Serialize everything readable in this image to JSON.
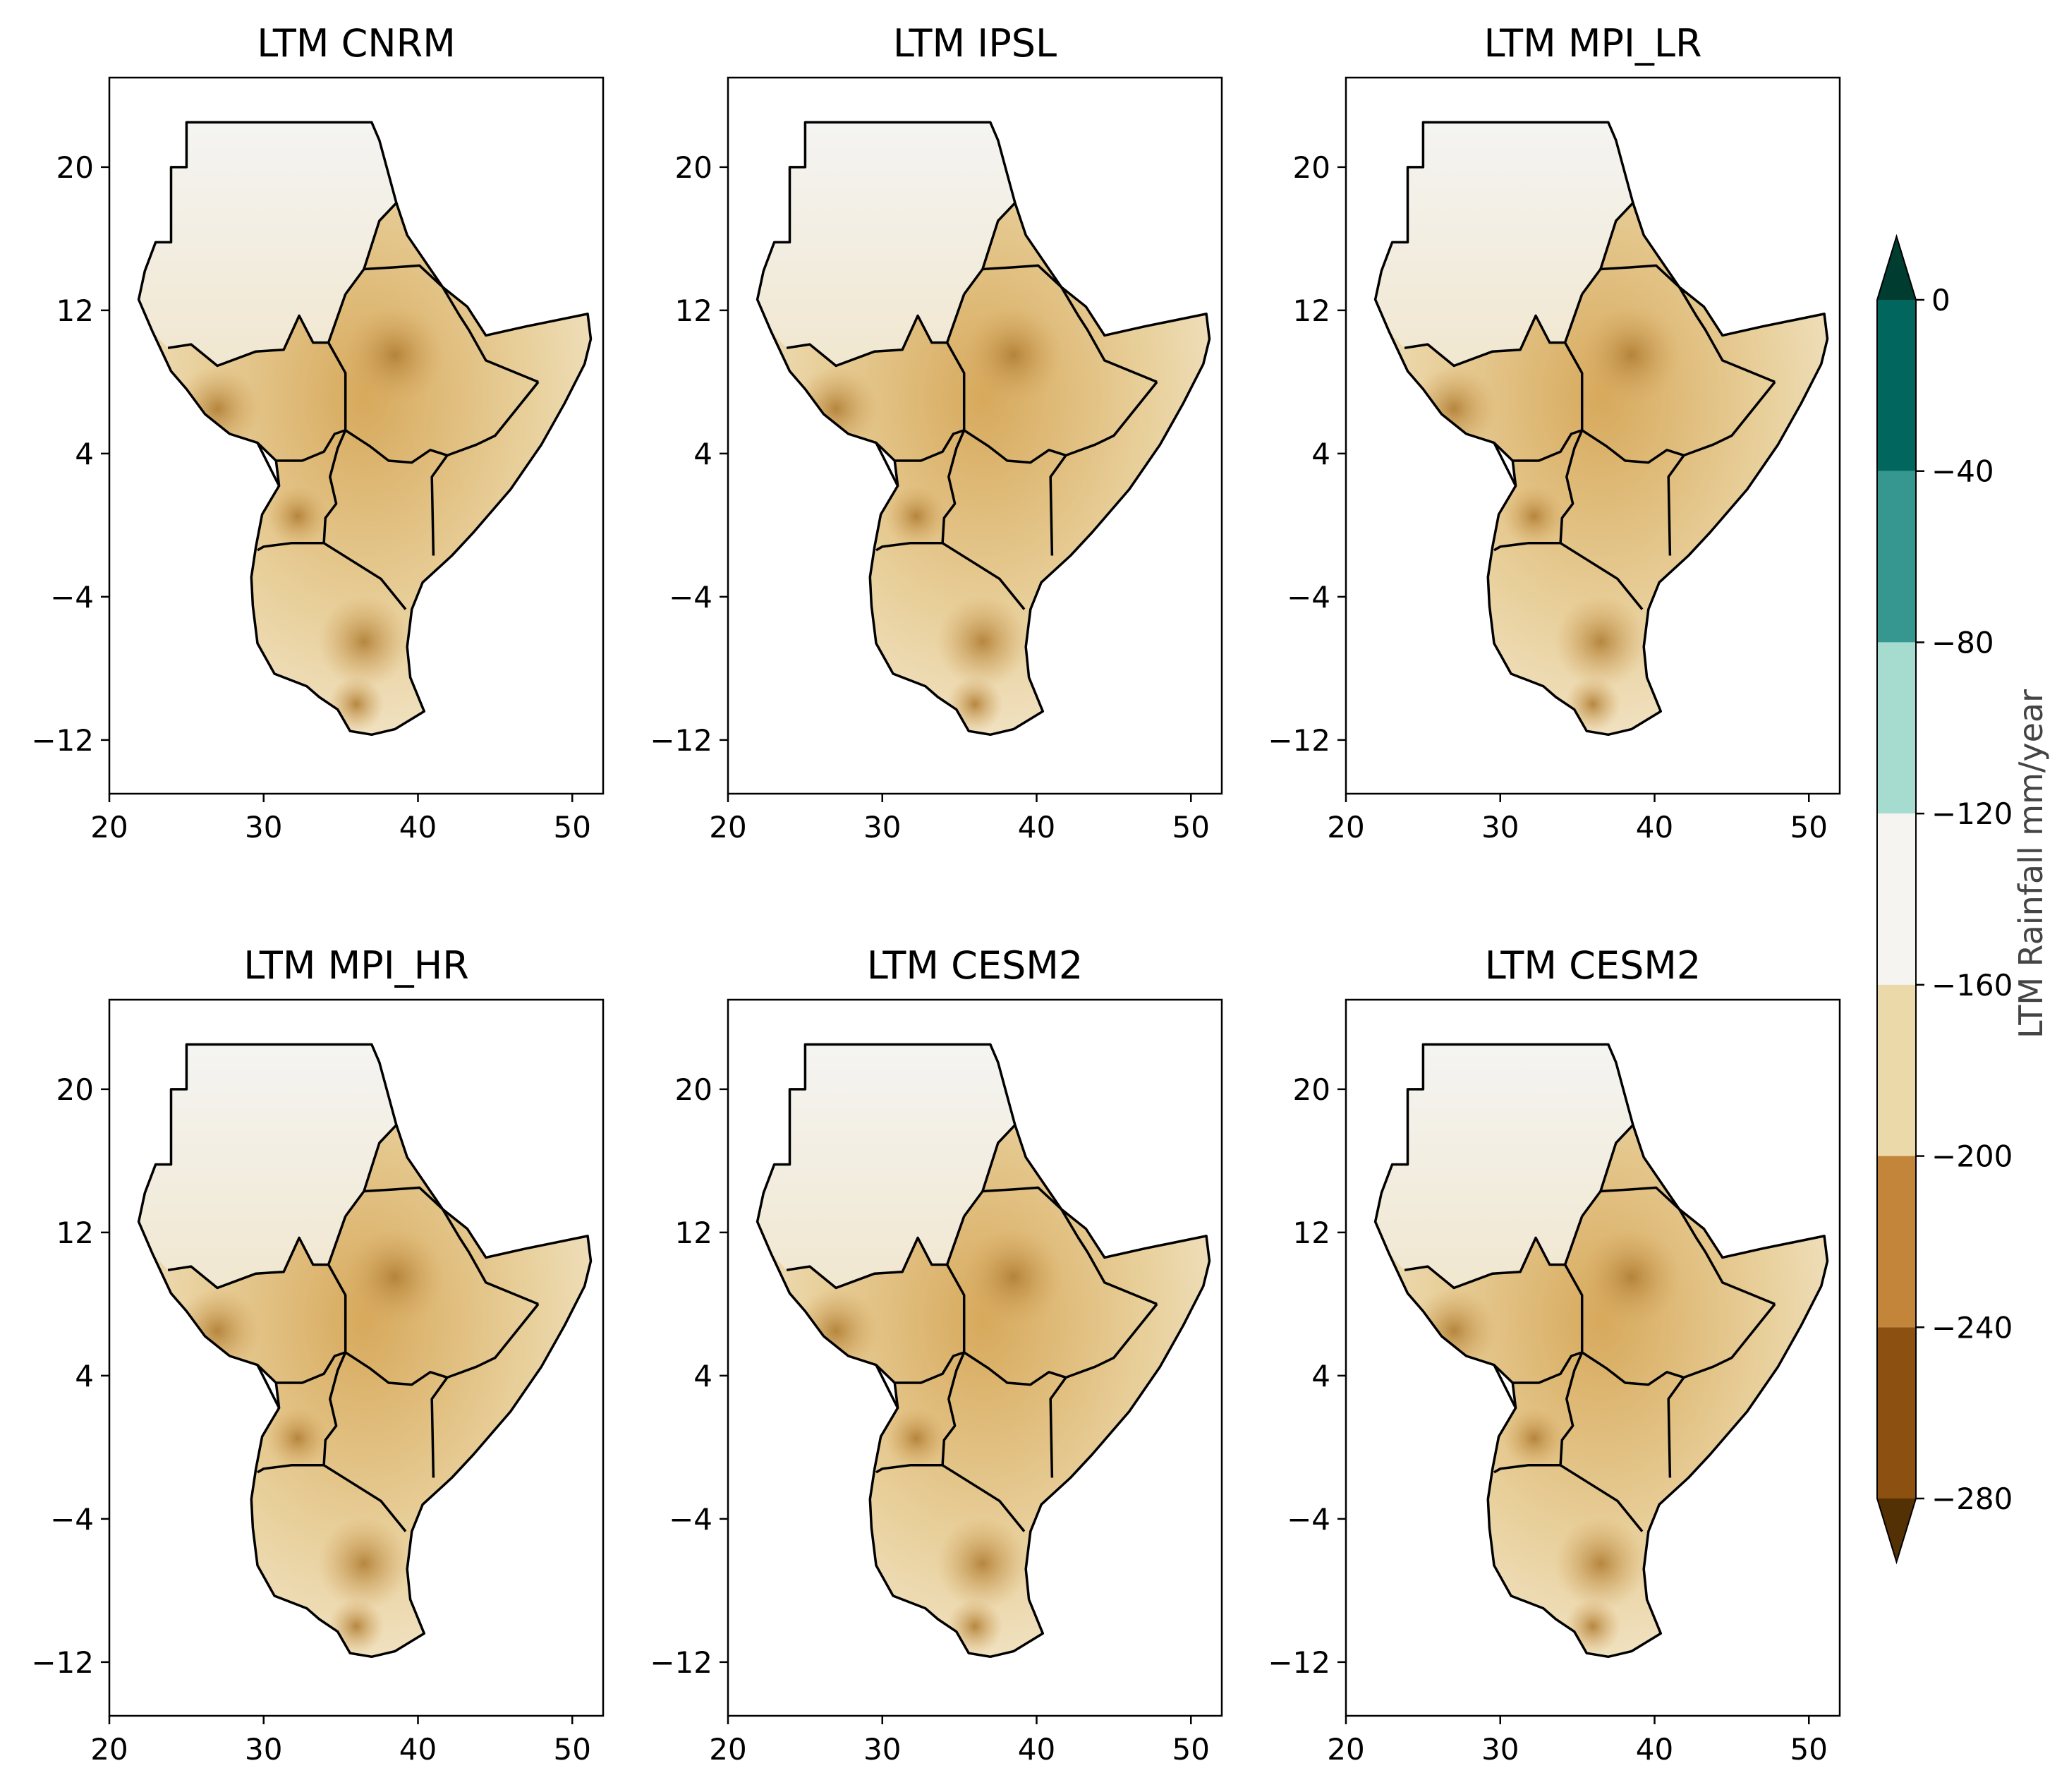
{
  "chart_data": {
    "type": "heatmap",
    "description_kind": "choropleth map grid",
    "panels": [
      {
        "title": "LTM CNRM"
      },
      {
        "title": "LTM IPSL"
      },
      {
        "title": "LTM MPI_LR"
      },
      {
        "title": "LTM MPI_HR"
      },
      {
        "title": "LTM CESM2"
      },
      {
        "title": "LTM CESM2"
      }
    ],
    "x_axis": {
      "ticks": [
        "20",
        "30",
        "40",
        "50"
      ],
      "tick_values": [
        20,
        30,
        40,
        50
      ],
      "xlim": [
        20,
        52
      ]
    },
    "y_axis": {
      "ticks": [
        "20",
        "12",
        "4",
        "−4",
        "−12"
      ],
      "tick_values": [
        20,
        12,
        4,
        -4,
        -12
      ],
      "ylim": [
        -15,
        25
      ]
    },
    "colorbar": {
      "label": "LTM Rainfall mm/year",
      "levels": [
        0,
        -40,
        -80,
        -120,
        -160,
        -200,
        -240,
        -280
      ],
      "tick_labels": [
        "0",
        "−40",
        "−80",
        "−120",
        "−160",
        "−200",
        "−240",
        "−280"
      ],
      "bins": [
        {
          "range": [
            -40,
            0
          ],
          "color": "#01665e"
        },
        {
          "range": [
            -80,
            -40
          ],
          "color": "#35978f"
        },
        {
          "range": [
            -120,
            -80
          ],
          "color": "#a6dbd0"
        },
        {
          "range": [
            -160,
            -120
          ],
          "color": "#f5f4f1"
        },
        {
          "range": [
            -200,
            -160
          ],
          "color": "#ecd9a9"
        },
        {
          "range": [
            -240,
            -200
          ],
          "color": "#c2853a"
        },
        {
          "range": [
            -280,
            -240
          ],
          "color": "#8c5111"
        }
      ],
      "extend_over_color": "#003c30",
      "extend_under_color": "#543005"
    }
  }
}
